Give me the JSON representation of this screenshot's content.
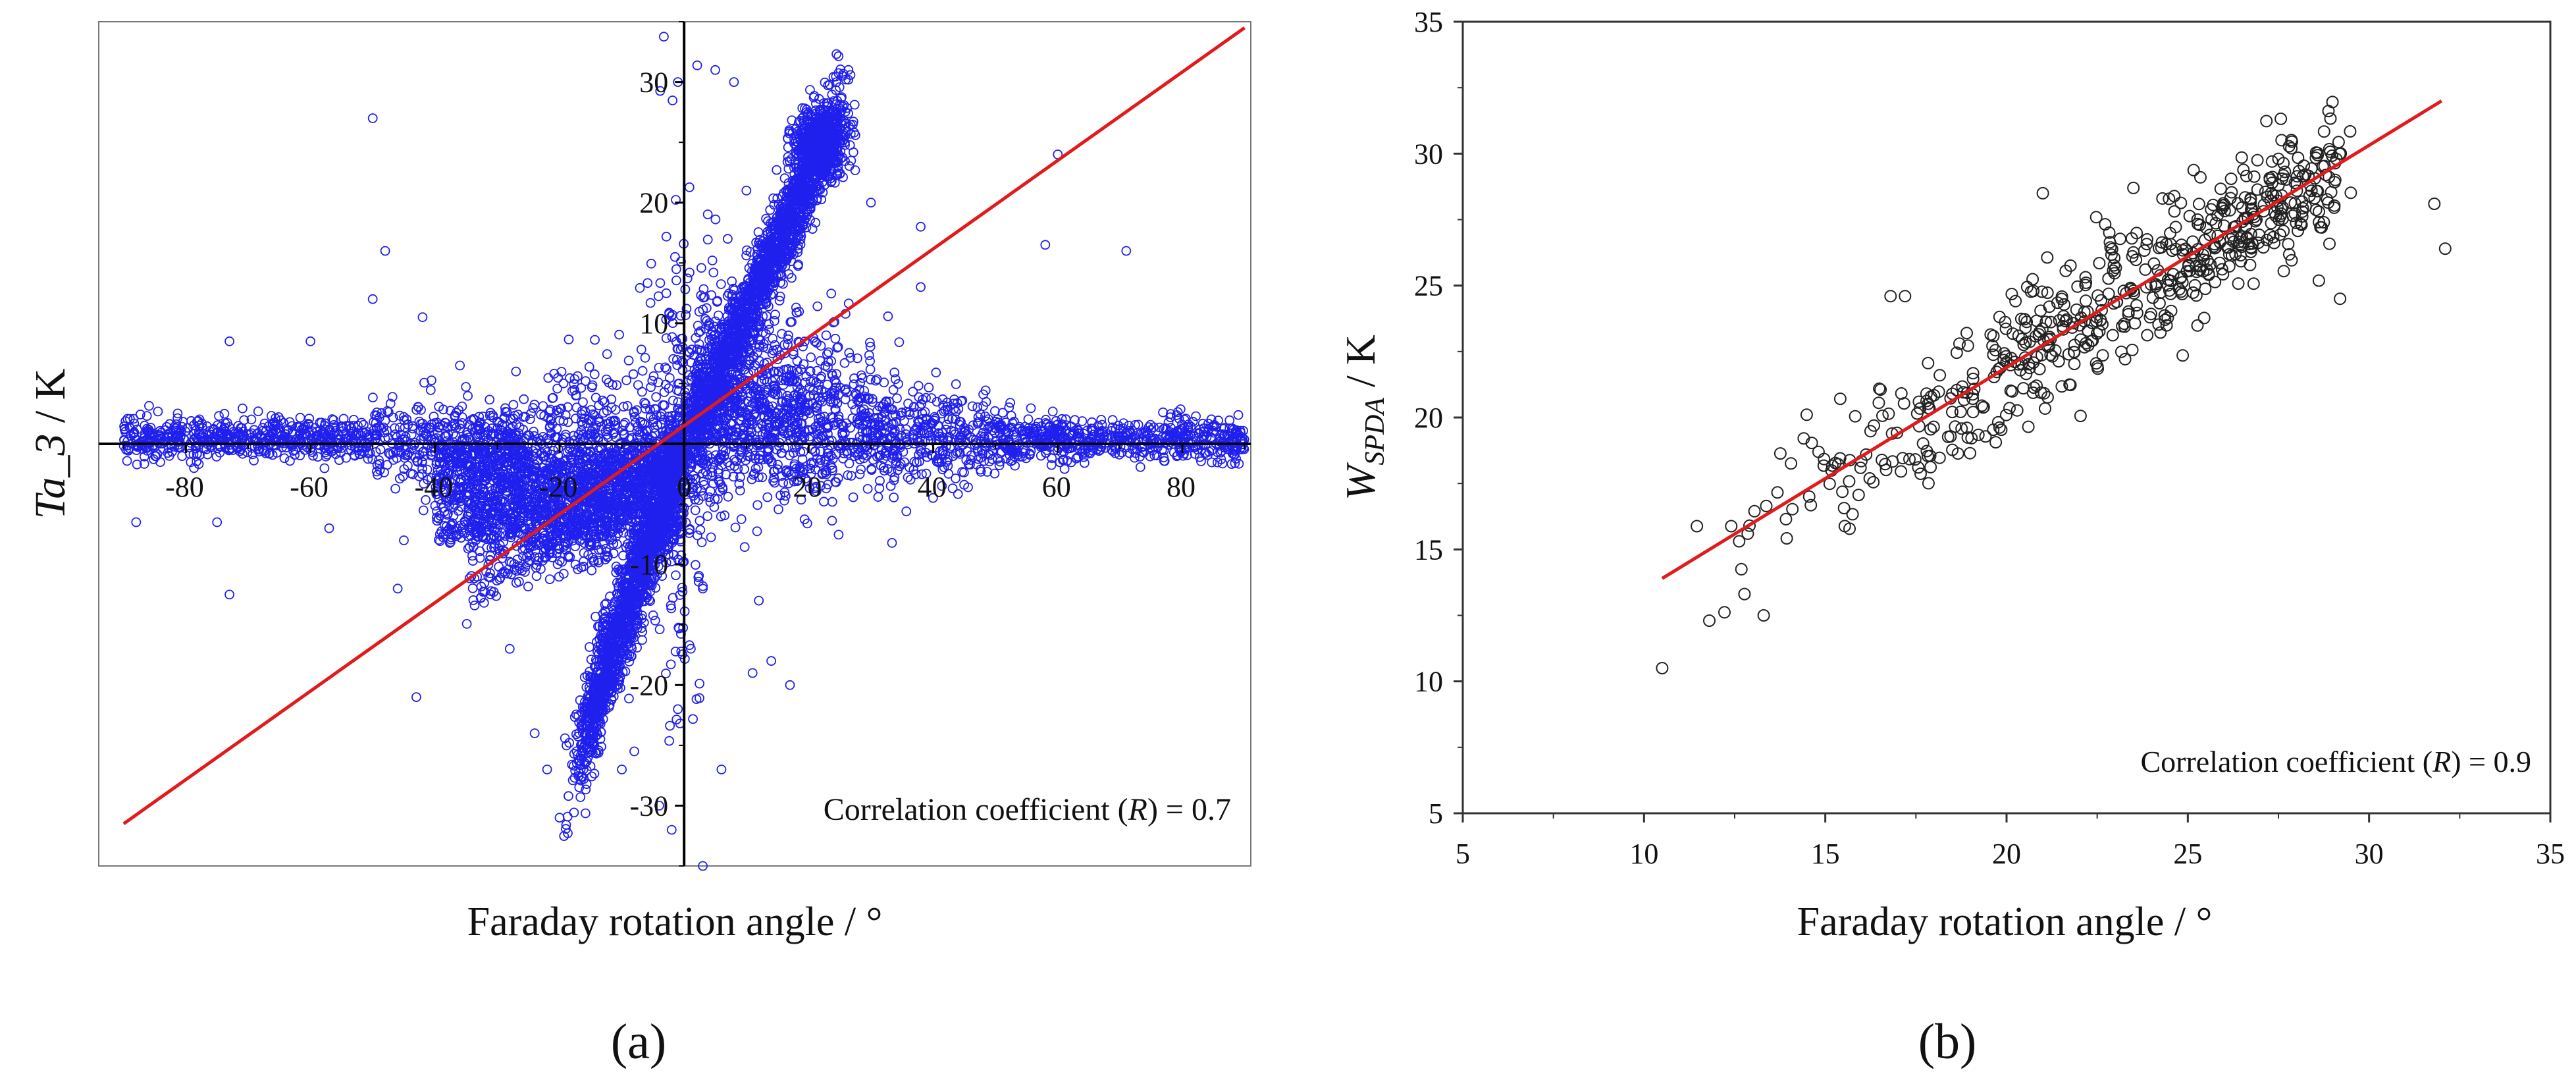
{
  "chart_data": [
    {
      "panel": "a",
      "panel_label": "(a)",
      "type": "scatter",
      "xlabel": "Faraday rotation angle / °",
      "ylabel_main": "Ta_3",
      "ylabel_unit": " / K",
      "annotation_prefix": "Correlation coefficient (",
      "annotation_symbol": "R",
      "annotation_suffix": ") = 0.7",
      "xlim": [
        -94,
        91
      ],
      "ylim": [
        -35,
        35
      ],
      "xticks": [
        -80,
        -60,
        -40,
        -20,
        0,
        20,
        40,
        60,
        80
      ],
      "xtick_labels": [
        "-80",
        "-60",
        "-40",
        "-20",
        "0",
        "20",
        "40",
        "60",
        "80"
      ],
      "yticks": [
        -30,
        -20,
        -10,
        0,
        10,
        20,
        30
      ],
      "ytick_labels": [
        "-30",
        "-20",
        "-10",
        "0",
        "10",
        "20",
        "30"
      ],
      "marker_color": "#2020ee",
      "fit_color": "#e11b1b",
      "fit_line": {
        "x": [
          -90,
          90
        ],
        "y": [
          -31.5,
          34.5
        ]
      },
      "clusters": [
        {
          "name": "upper-branch",
          "x_range": [
            0,
            30
          ],
          "y_center": 14,
          "spread": 3,
          "points": 1400
        },
        {
          "name": "lower-branch",
          "x_range": [
            -25,
            0
          ],
          "y_center": -10,
          "spread": 3.5,
          "points": 1300
        },
        {
          "name": "horizontal-band",
          "x_range": [
            -90,
            90
          ],
          "y_center": 0.5,
          "spread": 2.5,
          "points": 2500
        }
      ],
      "outliers": [
        [
          -50,
          27
        ],
        [
          -48,
          16
        ],
        [
          -50,
          12
        ],
        [
          -42,
          10.5
        ],
        [
          -73,
          8.5
        ],
        [
          -60,
          8.5
        ],
        [
          -36,
          6.5
        ],
        [
          -27,
          6
        ],
        [
          -88,
          -6.5
        ],
        [
          -75,
          -6.5
        ],
        [
          -73,
          -12.5
        ],
        [
          -57,
          -7
        ],
        [
          -46,
          -12
        ],
        [
          -45,
          -8
        ],
        [
          -43,
          -21
        ],
        [
          -28,
          -17
        ],
        [
          -24,
          -24
        ],
        [
          -22,
          -27
        ],
        [
          -20,
          -31
        ],
        [
          -15,
          -24
        ],
        [
          -10,
          -27
        ],
        [
          -8,
          -25.5
        ],
        [
          -4,
          -30
        ],
        [
          -2,
          -32
        ],
        [
          -1,
          30
        ],
        [
          5,
          31
        ],
        [
          8,
          30
        ],
        [
          10,
          21
        ],
        [
          7,
          17
        ],
        [
          13,
          12
        ],
        [
          21,
          8.5
        ],
        [
          25,
          27
        ],
        [
          30,
          20
        ],
        [
          38,
          18
        ],
        [
          38,
          13
        ],
        [
          58,
          16.5
        ],
        [
          60,
          24
        ],
        [
          71,
          16
        ],
        [
          3,
          -12
        ],
        [
          12,
          -13
        ],
        [
          17,
          -20
        ],
        [
          6,
          -27
        ],
        [
          14,
          -18
        ],
        [
          11,
          -19
        ],
        [
          -1,
          -22
        ],
        [
          3,
          -35
        ]
      ]
    },
    {
      "panel": "b",
      "panel_label": "(b)",
      "type": "scatter",
      "xlabel": "Faraday rotation angle / °",
      "ylabel_main": "W",
      "ylabel_sub": "SPDA",
      "ylabel_unit": " / K",
      "annotation_prefix": "Correlation coefficient (",
      "annotation_symbol": "R",
      "annotation_suffix": ") = 0.9",
      "xlim": [
        5,
        35
      ],
      "ylim": [
        5,
        35
      ],
      "xticks": [
        5,
        10,
        15,
        20,
        25,
        30,
        35
      ],
      "xtick_labels": [
        "5",
        "10",
        "15",
        "20",
        "25",
        "30",
        "35"
      ],
      "yticks": [
        5,
        10,
        15,
        20,
        25,
        30,
        35
      ],
      "ytick_labels": [
        "5",
        "10",
        "15",
        "20",
        "25",
        "30",
        "35"
      ],
      "marker_color": "#222222",
      "fit_color": "#e11b1b",
      "fit_line": {
        "x": [
          10.5,
          32
        ],
        "y": [
          13.9,
          32
        ]
      },
      "trend": {
        "slope": 0.84,
        "intercept": 5.05,
        "x_range": [
          10.5,
          32
        ],
        "spread": 1.3,
        "points": 600
      },
      "outliers": [
        [
          10.5,
          10.5
        ],
        [
          31.8,
          28.1
        ],
        [
          32.1,
          26.4
        ],
        [
          29.2,
          24.5
        ],
        [
          13.3,
          12.5
        ],
        [
          11.8,
          12.3
        ],
        [
          21,
          28.5
        ],
        [
          23.5,
          28.7
        ],
        [
          24.3,
          28.3
        ],
        [
          16.8,
          24.6
        ],
        [
          17.2,
          24.6
        ]
      ]
    }
  ]
}
